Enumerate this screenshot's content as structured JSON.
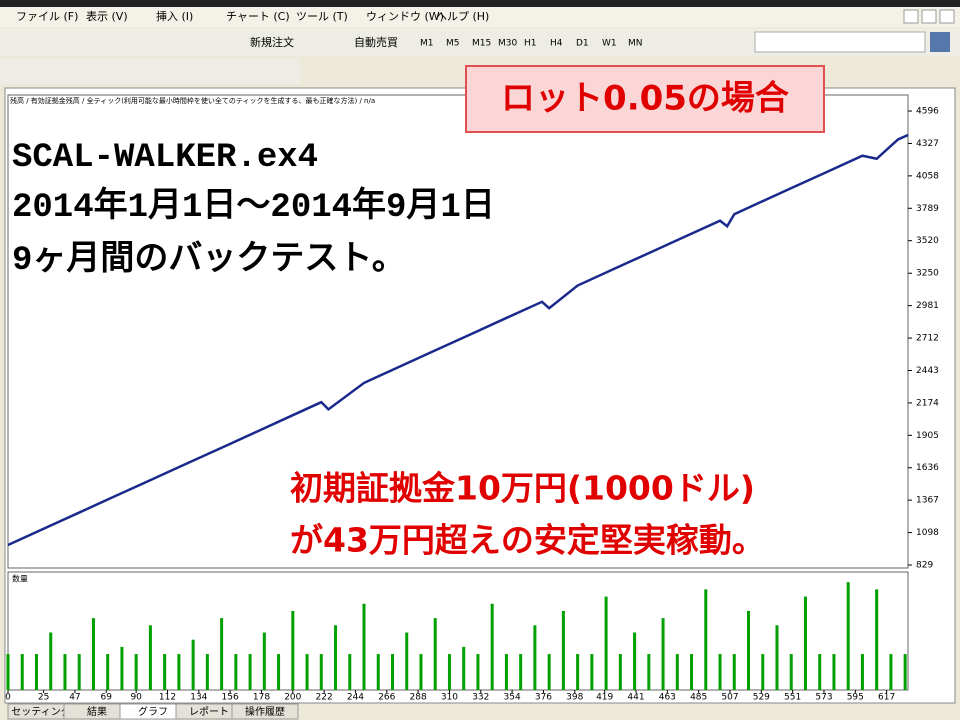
{
  "menu": [
    "ファイル (F)",
    "表示 (V)",
    "挿入 (I)",
    "チャート (C)",
    "ツール (T)",
    "ウィンドウ (W)",
    "ヘルプ (H)"
  ],
  "toolbar": {
    "buttons": [
      "新規注文",
      "自動売買"
    ],
    "timeframes": [
      "M1",
      "M5",
      "M15",
      "M30",
      "H1",
      "H4",
      "D1",
      "W1",
      "MN"
    ]
  },
  "chart_data": [
    {
      "type": "line",
      "title": "残高 / 有効証拠金残高 / 全ティック(利用可能な最小時間枠を使い全てのティックを生成する、最も正確な方法) / n/a",
      "xlim": [
        0,
        632
      ],
      "ylim": [
        804,
        4729
      ],
      "yticks": [
        829,
        1098,
        1367,
        1636,
        1905,
        2174,
        2443,
        2712,
        2981,
        3250,
        3520,
        3789,
        4058,
        4327,
        4596
      ],
      "series": [
        {
          "color": "#1a2a8c",
          "x": [
            0,
            25,
            50,
            75,
            100,
            125,
            150,
            175,
            200,
            220,
            225,
            250,
            275,
            300,
            325,
            350,
            375,
            380,
            400,
            425,
            450,
            475,
            500,
            505,
            510,
            525,
            550,
            575,
            600,
            610,
            625,
            632
          ],
          "values": [
            995,
            1130,
            1264,
            1399,
            1533,
            1668,
            1802,
            1937,
            2072,
            2180,
            2120,
            2340,
            2475,
            2610,
            2744,
            2879,
            3013,
            2960,
            3148,
            3283,
            3417,
            3552,
            3686,
            3640,
            3740,
            3821,
            3956,
            4090,
            4225,
            4200,
            4360,
            4397
          ]
        }
      ]
    },
    {
      "type": "bar",
      "title": "数量",
      "xlim": [
        0,
        632
      ],
      "ylim": [
        0,
        0.16
      ],
      "color": "#00a000",
      "xticks": [
        0,
        25,
        47,
        69,
        90,
        112,
        134,
        156,
        178,
        200,
        222,
        244,
        266,
        288,
        310,
        332,
        354,
        376,
        398,
        419,
        441,
        463,
        485,
        507,
        529,
        551,
        573,
        595,
        617
      ],
      "x": [
        0,
        10,
        20,
        30,
        40,
        50,
        60,
        70,
        80,
        90,
        100,
        110,
        120,
        130,
        140,
        150,
        160,
        170,
        180,
        190,
        200,
        210,
        220,
        230,
        240,
        250,
        260,
        270,
        280,
        290,
        300,
        310,
        320,
        330,
        340,
        350,
        360,
        370,
        380,
        390,
        400,
        410,
        420,
        430,
        440,
        450,
        460,
        470,
        480,
        490,
        500,
        510,
        520,
        530,
        540,
        550,
        560,
        570,
        580,
        590,
        600,
        610,
        620,
        630
      ],
      "values": [
        0.05,
        0.05,
        0.05,
        0.08,
        0.05,
        0.05,
        0.1,
        0.05,
        0.06,
        0.05,
        0.09,
        0.05,
        0.05,
        0.07,
        0.05,
        0.1,
        0.05,
        0.05,
        0.08,
        0.05,
        0.11,
        0.05,
        0.05,
        0.09,
        0.05,
        0.12,
        0.05,
        0.05,
        0.08,
        0.05,
        0.1,
        0.05,
        0.06,
        0.05,
        0.12,
        0.05,
        0.05,
        0.09,
        0.05,
        0.11,
        0.05,
        0.05,
        0.13,
        0.05,
        0.08,
        0.05,
        0.1,
        0.05,
        0.05,
        0.14,
        0.05,
        0.05,
        0.11,
        0.05,
        0.09,
        0.05,
        0.13,
        0.05,
        0.05,
        0.15,
        0.05,
        0.14,
        0.05,
        0.05
      ]
    }
  ],
  "annotations": {
    "badge": "ロット0.05の場合",
    "lines": [
      "SCAL-WALKER.ex4",
      "2014年1月1日～2014年9月1日",
      "9ヶ月間のバックテスト。"
    ],
    "red_lines": [
      "初期証拠金10万円(1000ドル)",
      "が43万円超えの安定堅実稼動。"
    ]
  },
  "tabs": [
    "セッティング",
    "結果",
    "グラフ",
    "レポート",
    "操作履歴"
  ]
}
